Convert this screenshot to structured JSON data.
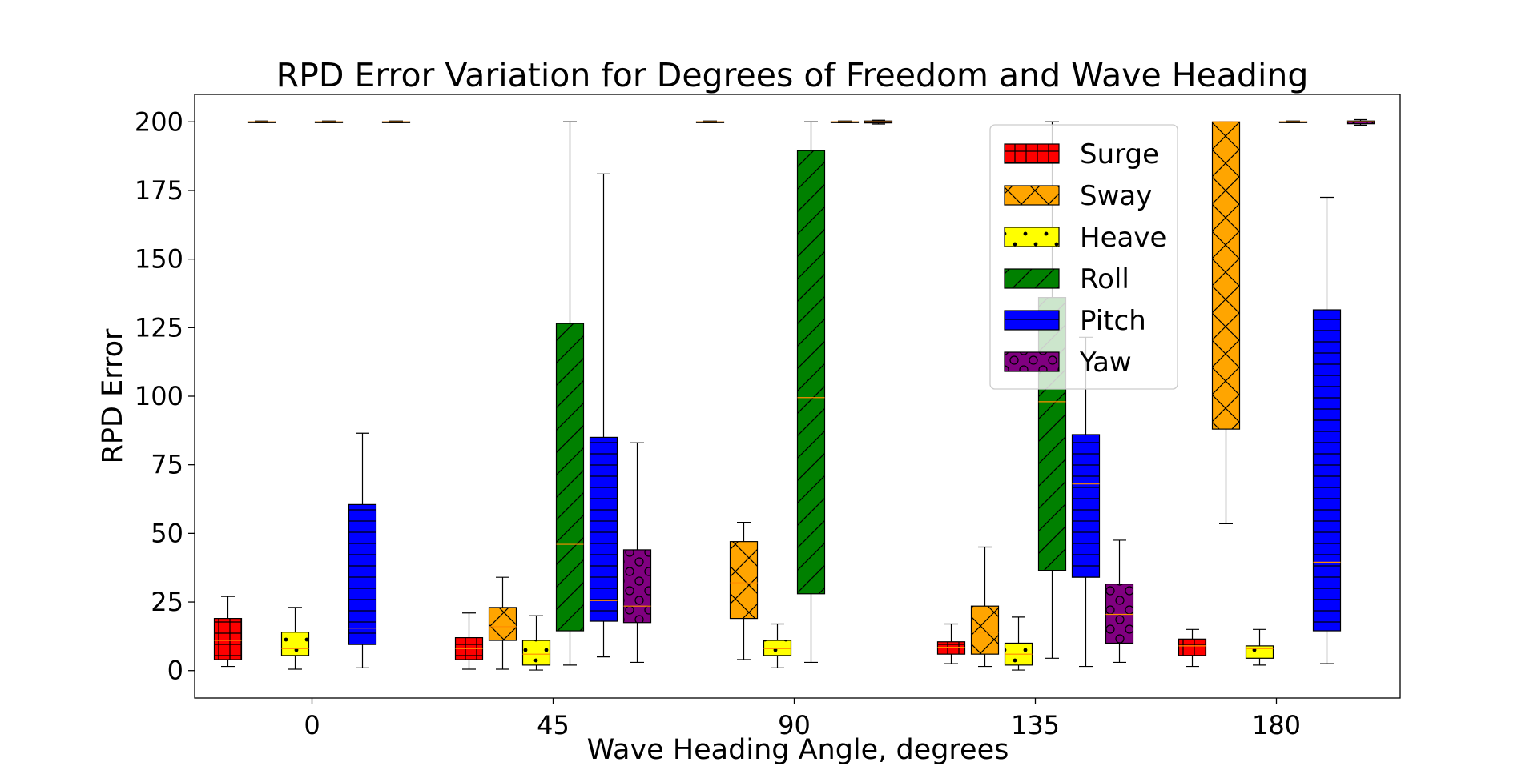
{
  "chart_data": {
    "type": "box",
    "title": "RPD Error Variation for Degrees of Freedom and Wave Heading",
    "xlabel": "Wave Heading Angle, degrees",
    "ylabel": "RPD Error",
    "categories": [
      "0",
      "45",
      "90",
      "135",
      "180"
    ],
    "ylim": [
      -10,
      210
    ],
    "yticks": [
      0,
      25,
      50,
      75,
      100,
      125,
      150,
      175,
      200
    ],
    "legend_position": "upper-right",
    "series": [
      {
        "name": "Surge",
        "color": "#ff0000",
        "hatch": "grid",
        "boxes": [
          {
            "min": 1.5,
            "q1": 4,
            "median": 11,
            "q3": 19,
            "max": 27
          },
          {
            "min": 0.5,
            "q1": 4,
            "median": 8,
            "q3": 12,
            "max": 21
          },
          {
            "min": 199.7,
            "q1": 200,
            "median": 200,
            "q3": 200,
            "max": 200.3
          },
          {
            "min": 2.5,
            "q1": 6,
            "median": 8.5,
            "q3": 10.5,
            "max": 17
          },
          {
            "min": 1.5,
            "q1": 5.5,
            "median": 9,
            "q3": 11.5,
            "max": 15
          }
        ]
      },
      {
        "name": "Sway",
        "color": "#ffa500",
        "hatch": "cross",
        "boxes": [
          {
            "min": 199.7,
            "q1": 200,
            "median": 200,
            "q3": 200,
            "max": 200.3
          },
          {
            "min": 0.5,
            "q1": 11,
            "median": 16,
            "q3": 23,
            "max": 34
          },
          {
            "min": 4,
            "q1": 19,
            "median": 32,
            "q3": 47,
            "max": 54
          },
          {
            "min": 1.5,
            "q1": 6,
            "median": 14,
            "q3": 23.5,
            "max": 45
          },
          {
            "min": 53.5,
            "q1": 88,
            "median": 200,
            "q3": 200,
            "max": 200
          }
        ]
      },
      {
        "name": "Heave",
        "color": "#ffff00",
        "hatch": "dots",
        "boxes": [
          {
            "min": 0.5,
            "q1": 5.5,
            "median": 8,
            "q3": 14,
            "max": 23
          },
          {
            "min": 0.2,
            "q1": 2,
            "median": 6,
            "q3": 11,
            "max": 20
          },
          {
            "min": 1,
            "q1": 5.5,
            "median": 8,
            "q3": 11,
            "max": 17
          },
          {
            "min": 0.2,
            "q1": 2,
            "median": 6,
            "q3": 10,
            "max": 19.5
          },
          {
            "min": 2,
            "q1": 4.5,
            "median": 8,
            "q3": 9,
            "max": 15
          }
        ]
      },
      {
        "name": "Roll",
        "color": "#008000",
        "hatch": "diagonal",
        "boxes": [
          {
            "min": 199.7,
            "q1": 200,
            "median": 200,
            "q3": 200,
            "max": 200.3
          },
          {
            "min": 2,
            "q1": 14.5,
            "median": 46,
            "q3": 126.5,
            "max": 200
          },
          {
            "min": 3,
            "q1": 28,
            "median": 99.5,
            "q3": 189.5,
            "max": 200
          },
          {
            "min": 4.5,
            "q1": 36.5,
            "median": 98,
            "q3": 136,
            "max": 200
          },
          {
            "min": 199.7,
            "q1": 200,
            "median": 200,
            "q3": 200,
            "max": 200.3
          }
        ]
      },
      {
        "name": "Pitch",
        "color": "#0000ff",
        "hatch": "horizontal",
        "boxes": [
          {
            "min": 1,
            "q1": 9.5,
            "median": 15.5,
            "q3": 60.5,
            "max": 86.5
          },
          {
            "min": 5,
            "q1": 18,
            "median": 25.5,
            "q3": 85,
            "max": 181
          },
          {
            "min": 199.7,
            "q1": 200,
            "median": 200,
            "q3": 200,
            "max": 200.3
          },
          {
            "min": 1.5,
            "q1": 34,
            "median": 68,
            "q3": 86,
            "max": 121.5
          },
          {
            "min": 2.5,
            "q1": 14.5,
            "median": 39.5,
            "q3": 131.5,
            "max": 172.5
          }
        ]
      },
      {
        "name": "Yaw",
        "color": "#800080",
        "hatch": "circles",
        "boxes": [
          {
            "min": 199.7,
            "q1": 200,
            "median": 200,
            "q3": 200,
            "max": 200.3
          },
          {
            "min": 3,
            "q1": 17.5,
            "median": 23.5,
            "q3": 44,
            "max": 83
          },
          {
            "min": 199.2,
            "q1": 199.6,
            "median": 200,
            "q3": 200.3,
            "max": 200.6
          },
          {
            "min": 3,
            "q1": 10,
            "median": 20.5,
            "q3": 31.5,
            "max": 47.5
          },
          {
            "min": 198.8,
            "q1": 199.3,
            "median": 200,
            "q3": 200.3,
            "max": 200.8
          }
        ]
      }
    ]
  }
}
